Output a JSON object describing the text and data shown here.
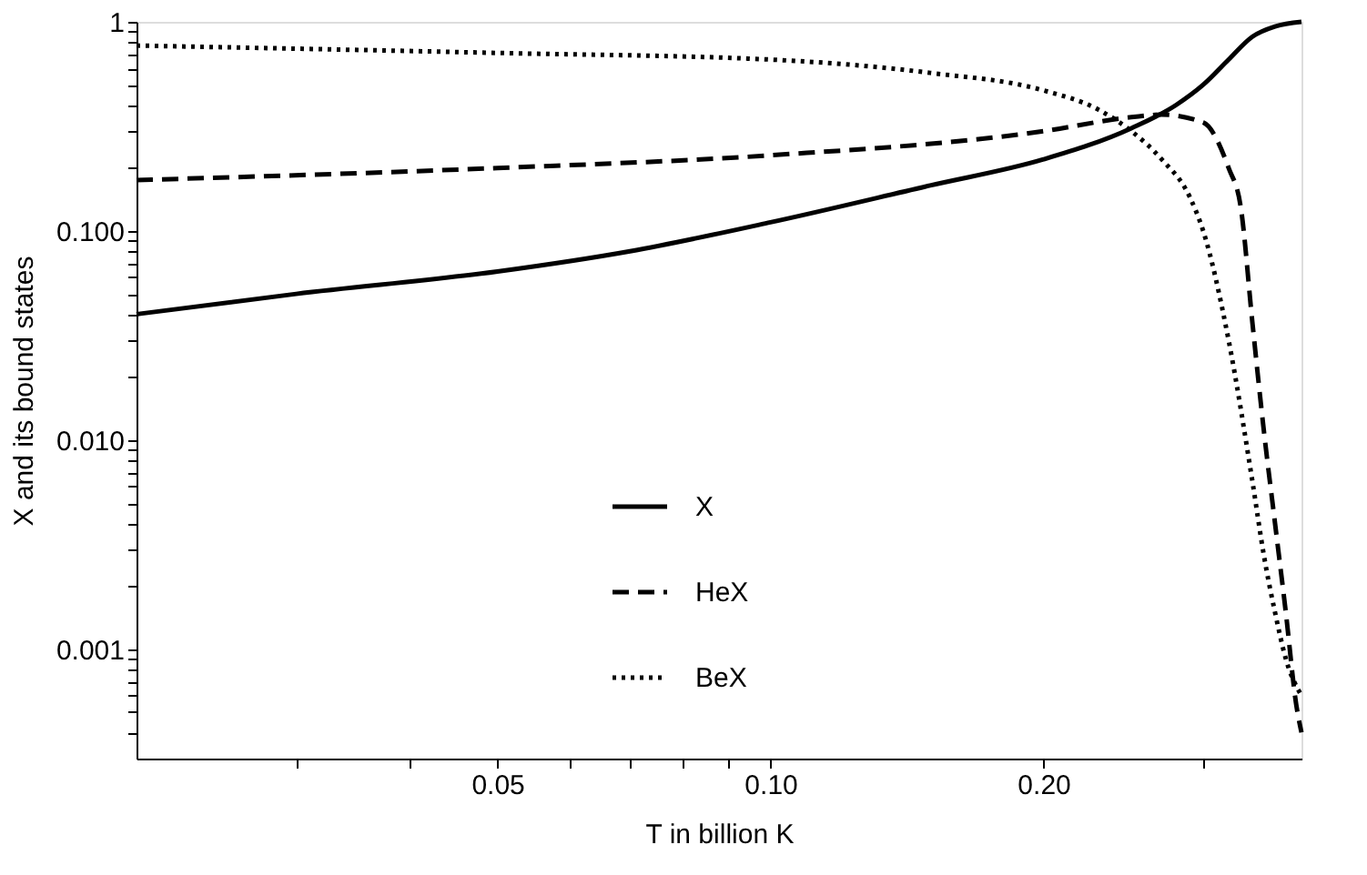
{
  "chart_data": {
    "type": "line",
    "xlabel": "T in billion K",
    "ylabel": "X and its bound states",
    "log": "xy",
    "grid": false,
    "legend": "bottom",
    "marker": "none",
    "xlim": [
      0.02,
      0.385
    ],
    "ylim": [
      0.0003,
      1
    ],
    "xticks": [
      {
        "value": 0.03,
        "label": null
      },
      {
        "value": 0.04,
        "label": null
      },
      {
        "value": 0.05,
        "label": "0.05"
      },
      {
        "value": 0.06,
        "label": null
      },
      {
        "value": 0.07,
        "label": null
      },
      {
        "value": 0.08,
        "label": null
      },
      {
        "value": 0.09,
        "label": null
      },
      {
        "value": 0.1,
        "label": "0.10"
      },
      {
        "value": 0.2,
        "label": "0.20"
      },
      {
        "value": 0.3,
        "label": null
      }
    ],
    "yticks": [
      {
        "value": 0.0004,
        "label": null
      },
      {
        "value": 0.0005,
        "label": null
      },
      {
        "value": 0.0006,
        "label": null
      },
      {
        "value": 0.0007,
        "label": null
      },
      {
        "value": 0.0008,
        "label": null
      },
      {
        "value": 0.0009,
        "label": null
      },
      {
        "value": 0.001,
        "label": "0.001"
      },
      {
        "value": 0.002,
        "label": null
      },
      {
        "value": 0.003,
        "label": null
      },
      {
        "value": 0.004,
        "label": null
      },
      {
        "value": 0.005,
        "label": null
      },
      {
        "value": 0.006,
        "label": null
      },
      {
        "value": 0.007,
        "label": null
      },
      {
        "value": 0.008,
        "label": null
      },
      {
        "value": 0.009,
        "label": null
      },
      {
        "value": 0.01,
        "label": "0.010"
      },
      {
        "value": 0.02,
        "label": null
      },
      {
        "value": 0.03,
        "label": null
      },
      {
        "value": 0.04,
        "label": null
      },
      {
        "value": 0.05,
        "label": null
      },
      {
        "value": 0.06,
        "label": null
      },
      {
        "value": 0.07,
        "label": null
      },
      {
        "value": 0.08,
        "label": null
      },
      {
        "value": 0.09,
        "label": null
      },
      {
        "value": 0.1,
        "label": "0.100"
      },
      {
        "value": 0.2,
        "label": null
      },
      {
        "value": 0.3,
        "label": null
      },
      {
        "value": 0.4,
        "label": null
      },
      {
        "value": 0.5,
        "label": null
      },
      {
        "value": 0.6,
        "label": null
      },
      {
        "value": 0.7,
        "label": null
      },
      {
        "value": 0.8,
        "label": null
      },
      {
        "value": 0.9,
        "label": null
      },
      {
        "value": 1,
        "label": "1"
      }
    ],
    "series": [
      {
        "name": "X",
        "color": "#000000",
        "line_style": "solid",
        "x": [
          0.02,
          0.03,
          0.05,
          0.07,
          0.1,
          0.15,
          0.2,
          0.25,
          0.28,
          0.3,
          0.32,
          0.34,
          0.36,
          0.385
        ],
        "values": [
          0.04,
          0.05,
          0.064,
          0.08,
          0.11,
          0.165,
          0.22,
          0.31,
          0.4,
          0.5,
          0.66,
          0.85,
          0.95,
          1.0
        ]
      },
      {
        "name": "HeX",
        "color": "#000000",
        "line_style": "dashed",
        "x": [
          0.02,
          0.05,
          0.1,
          0.2,
          0.25,
          0.27,
          0.3,
          0.32,
          0.33,
          0.34,
          0.35,
          0.36,
          0.37,
          0.38,
          0.385
        ],
        "values": [
          0.175,
          0.2,
          0.23,
          0.3,
          0.35,
          0.36,
          0.33,
          0.2,
          0.13,
          0.036,
          0.011,
          0.004,
          0.0015,
          0.00054,
          0.0004
        ]
      },
      {
        "name": "BeX",
        "color": "#000000",
        "line_style": "dotted",
        "x": [
          0.02,
          0.05,
          0.1,
          0.15,
          0.2,
          0.23,
          0.25,
          0.27,
          0.29,
          0.3,
          0.32,
          0.34,
          0.35,
          0.36,
          0.37,
          0.385
        ],
        "values": [
          0.77,
          0.71,
          0.66,
          0.57,
          0.47,
          0.38,
          0.3,
          0.22,
          0.145,
          0.1,
          0.03,
          0.0063,
          0.0028,
          0.0015,
          0.0009,
          0.0006
        ]
      }
    ]
  }
}
